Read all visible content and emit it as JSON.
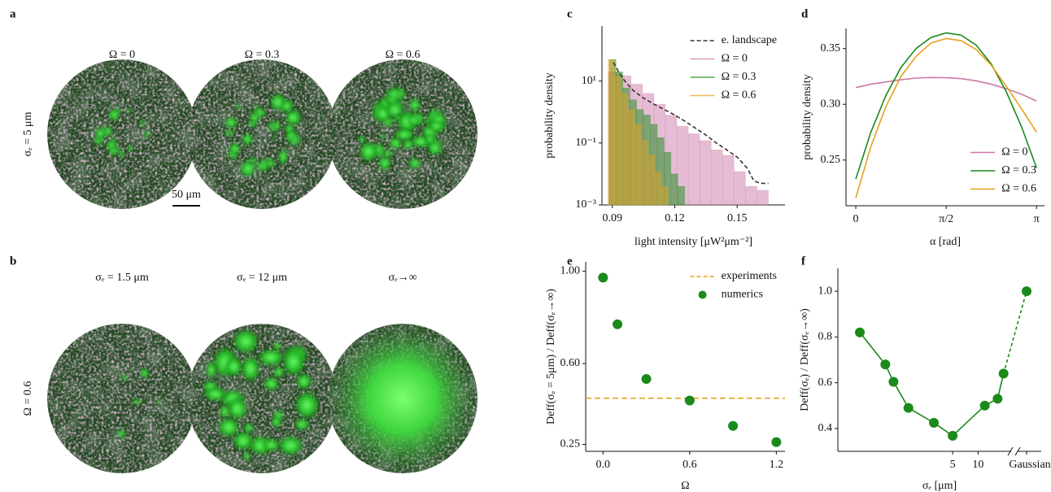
{
  "panels": {
    "a": {
      "letter": "a",
      "titles": [
        "Ω = 0",
        "Ω = 0.3",
        "Ω = 0.6"
      ],
      "row_label": "σₑ = 5 μm",
      "scale_bar": "50 μm"
    },
    "b": {
      "letter": "b",
      "titles": [
        "σₑ = 1.5 μm",
        "σₑ = 12 μm",
        "σₑ→∞"
      ],
      "row_label": "Ω = 0.6"
    }
  },
  "chart_data": [
    {
      "type": "histogram",
      "panel_label": "c",
      "xlabel": "light intensity [μW²μm⁻²]",
      "ylabel": "probability density",
      "xlim": [
        0.085,
        0.173
      ],
      "ylim": [
        0.001,
        600
      ],
      "yscale": "log",
      "xticks": [
        0.09,
        0.12,
        0.15
      ],
      "yticks": [
        {
          "value": 0.001,
          "label": "10⁻³"
        },
        {
          "value": 0.1,
          "label": "10⁻¹"
        },
        {
          "value": 10,
          "label": "10¹"
        }
      ],
      "legend": "upper right",
      "series": [
        {
          "name": "e. landscape",
          "color": "#333333",
          "style": "dashed",
          "x": [
            0.0905,
            0.093,
            0.096,
            0.1,
            0.105,
            0.11,
            0.115,
            0.12,
            0.125,
            0.13,
            0.135,
            0.14,
            0.145,
            0.15,
            0.155,
            0.158,
            0.161,
            0.165
          ],
          "values": [
            40,
            20,
            10,
            5,
            2.8,
            1.8,
            1.2,
            0.8,
            0.5,
            0.3,
            0.18,
            0.1,
            0.06,
            0.035,
            0.015,
            0.006,
            0.005,
            0.005
          ]
        },
        {
          "name": "Ω = 0",
          "color": "#cc79a7",
          "bins": [
            0.088,
            0.0935,
            0.099,
            0.1045,
            0.11,
            0.1155,
            0.121,
            0.1265,
            0.132,
            0.1375,
            0.143,
            0.1485,
            0.154,
            0.1595,
            0.165
          ],
          "values": [
            20,
            15,
            8,
            4,
            1.8,
            0.8,
            0.35,
            0.2,
            0.12,
            0.06,
            0.04,
            0.012,
            0.004,
            0.003
          ]
        },
        {
          "name": "Ω = 0.3",
          "color": "#1a8a1a",
          "bins": [
            0.0885,
            0.0918,
            0.0951,
            0.0984,
            0.1017,
            0.105,
            0.1083,
            0.1116,
            0.1149,
            0.1182,
            0.1215,
            0.1248
          ],
          "values": [
            50,
            20,
            6,
            2.5,
            1.2,
            0.8,
            0.4,
            0.15,
            0.05,
            0.01,
            0.004
          ]
        },
        {
          "name": "Ω = 0.6",
          "color": "#e6a11e",
          "bins": [
            0.088,
            0.0912,
            0.0944,
            0.0976,
            0.1008,
            0.104,
            0.1072,
            0.1104,
            0.1136,
            0.1168
          ],
          "values": [
            50,
            14,
            4,
            1.2,
            0.4,
            0.12,
            0.04,
            0.012,
            0.004
          ]
        }
      ]
    },
    {
      "type": "line",
      "panel_label": "d",
      "xlabel": "α [rad]",
      "ylabel": "probability density",
      "xlim": [
        -0.17,
        3.28
      ],
      "ylim": [
        0.209,
        0.368
      ],
      "xticks": [
        0,
        {
          "value": 1.5708,
          "label": "π/2"
        },
        {
          "value": 3.1416,
          "label": "π"
        }
      ],
      "yticks": [
        0.25,
        {
          "value": 0.3,
          "label": "0.30"
        },
        0.35
      ],
      "legend": "lower right",
      "series": [
        {
          "name": "Ω = 0",
          "color": "#cc79a7",
          "x": [
            0,
            0.2618,
            0.5236,
            0.7854,
            1.0472,
            1.309,
            1.5708,
            1.8326,
            2.0944,
            2.3562,
            2.618,
            2.8798,
            3.1416
          ],
          "values": [
            0.315,
            0.318,
            0.32,
            0.322,
            0.3235,
            0.324,
            0.3238,
            0.323,
            0.321,
            0.318,
            0.314,
            0.309,
            0.303
          ]
        },
        {
          "name": "Ω = 0.3",
          "color": "#1a8a1a",
          "x": [
            0,
            0.2618,
            0.5236,
            0.7854,
            1.0472,
            1.309,
            1.5708,
            1.8326,
            2.0944,
            2.3562,
            2.618,
            2.8798,
            3.1416
          ],
          "values": [
            0.233,
            0.275,
            0.308,
            0.333,
            0.35,
            0.36,
            0.364,
            0.362,
            0.353,
            0.336,
            0.311,
            0.28,
            0.243
          ]
        },
        {
          "name": "Ω = 0.6",
          "color": "#e6a11e",
          "x": [
            0,
            0.2618,
            0.5236,
            0.7854,
            1.0472,
            1.309,
            1.5708,
            1.8326,
            2.0944,
            2.3562,
            2.618,
            2.8798,
            3.1416
          ],
          "values": [
            0.216,
            0.262,
            0.298,
            0.325,
            0.343,
            0.355,
            0.359,
            0.357,
            0.349,
            0.335,
            0.316,
            0.296,
            0.275
          ]
        }
      ]
    },
    {
      "type": "scatter",
      "panel_label": "e",
      "xlabel": "Ω",
      "ylabel": "Deff(σₑ = 5μm) / Deff(σₑ→∞)",
      "xlim": [
        -0.12,
        1.26
      ],
      "ylim": [
        0.22,
        1.04
      ],
      "xticks": [
        {
          "value": 0,
          "label": "0.0"
        },
        0.6,
        1.2
      ],
      "yticks": [
        0.25,
        {
          "value": 0.6,
          "label": "0.60"
        },
        {
          "value": 1,
          "label": "1.00"
        }
      ],
      "legend": "upper right",
      "series": [
        {
          "name": "experiments",
          "color": "#e6a11e",
          "style": "dashed",
          "value": 0.45
        },
        {
          "name": "numerics",
          "color": "#1a8a1a",
          "x": [
            0,
            0.1,
            0.3,
            0.6,
            0.9,
            1.2
          ],
          "values": [
            0.972,
            0.77,
            0.533,
            0.44,
            0.33,
            0.26
          ]
        }
      ]
    },
    {
      "type": "line",
      "panel_label": "f",
      "xlabel": "σₑ [μm]",
      "ylabel": "Deff(σₑ) / Deff(σₑ→∞)",
      "xscale": "log",
      "xlim": [
        0.22,
        30
      ],
      "ylim": [
        0.3,
        1.1
      ],
      "xticks": [
        5,
        10
      ],
      "yticks": [
        0.4,
        0.6,
        0.8,
        {
          "value": 1,
          "label": "1.0"
        }
      ],
      "series": [
        {
          "color": "#1a8a1a",
          "markers": true,
          "x": [
            0.4,
            0.8,
            1,
            1.5,
            3,
            5,
            12,
            17,
            20
          ],
          "values": [
            0.82,
            0.68,
            0.604,
            0.49,
            0.425,
            0.368,
            0.5,
            0.53,
            0.64
          ]
        }
      ],
      "gaussian": {
        "label": "Gaussian",
        "value": 1.0
      }
    }
  ]
}
